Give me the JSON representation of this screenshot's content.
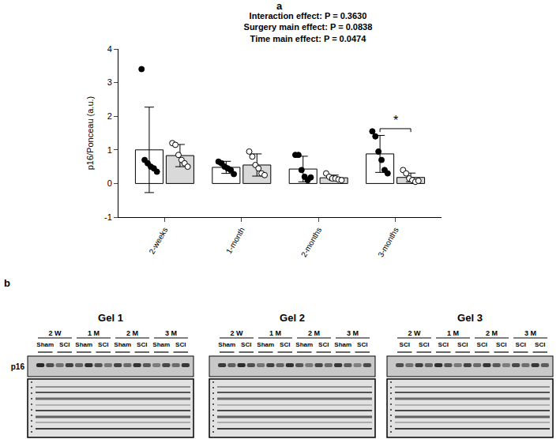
{
  "chart_data": {
    "type": "bar",
    "title": [
      "Interaction effect: P = 0.3630",
      "Surgery main effect: P = 0.0838",
      "Time main effect: P = 0.0474"
    ],
    "y_label": "p16/Ponceau (a.u.)",
    "categories": [
      "2-weeks",
      "1-month",
      "2-months",
      "3-months"
    ],
    "series": [
      {
        "name": "Sham",
        "color": "#ffffff",
        "marker": "filled",
        "values": [
          1.0,
          0.48,
          0.43,
          0.88
        ],
        "error": [
          1.27,
          0.18,
          0.38,
          0.55
        ],
        "points": [
          [
            3.4,
            0.7,
            0.6,
            0.5,
            0.45,
            0.35
          ],
          [
            0.65,
            0.6,
            0.5,
            0.45,
            0.4,
            0.28
          ],
          [
            0.85,
            0.85,
            0.4,
            0.2,
            0.1,
            0.18
          ],
          [
            1.55,
            1.4,
            0.95,
            0.7,
            0.4,
            0.3
          ]
        ]
      },
      {
        "name": "SCI",
        "color": "#d9d9d9",
        "marker": "open",
        "values": [
          0.83,
          0.55,
          0.17,
          0.18
        ],
        "error": [
          0.33,
          0.33,
          0.08,
          0.13
        ],
        "points": [
          [
            1.2,
            1.15,
            0.85,
            0.7,
            0.6,
            0.5
          ],
          [
            0.95,
            0.8,
            0.55,
            0.45,
            0.3,
            0.25
          ],
          [
            0.3,
            0.2,
            0.15,
            0.15,
            0.12,
            0.1
          ],
          [
            0.4,
            0.3,
            0.15,
            0.1,
            0.05,
            0.08
          ]
        ]
      }
    ],
    "ylim": [
      -1,
      4
    ],
    "yticks": [
      -1,
      0,
      1,
      2,
      3,
      4
    ],
    "grid": false,
    "annotations": [
      {
        "category": "3-months",
        "text": "*"
      }
    ]
  },
  "figure": {
    "panel_labels": [
      "a",
      "b"
    ],
    "blots": {
      "protein": "p16",
      "gels": [
        {
          "title": "Gel 1",
          "times": [
            "2 W",
            "1 M",
            "2 M",
            "3 M"
          ],
          "groups": [
            "Sham",
            "SCI"
          ]
        },
        {
          "title": "Gel 2",
          "times": [
            "2 W",
            "1 M",
            "2 M",
            "3 M"
          ],
          "groups": [
            "Sham",
            "SCI"
          ]
        },
        {
          "title": "Gel 3",
          "times": [
            "2 W",
            "1 M",
            "2 M",
            "3 M"
          ],
          "groups": [
            "SCI",
            "SCI"
          ]
        }
      ]
    }
  }
}
